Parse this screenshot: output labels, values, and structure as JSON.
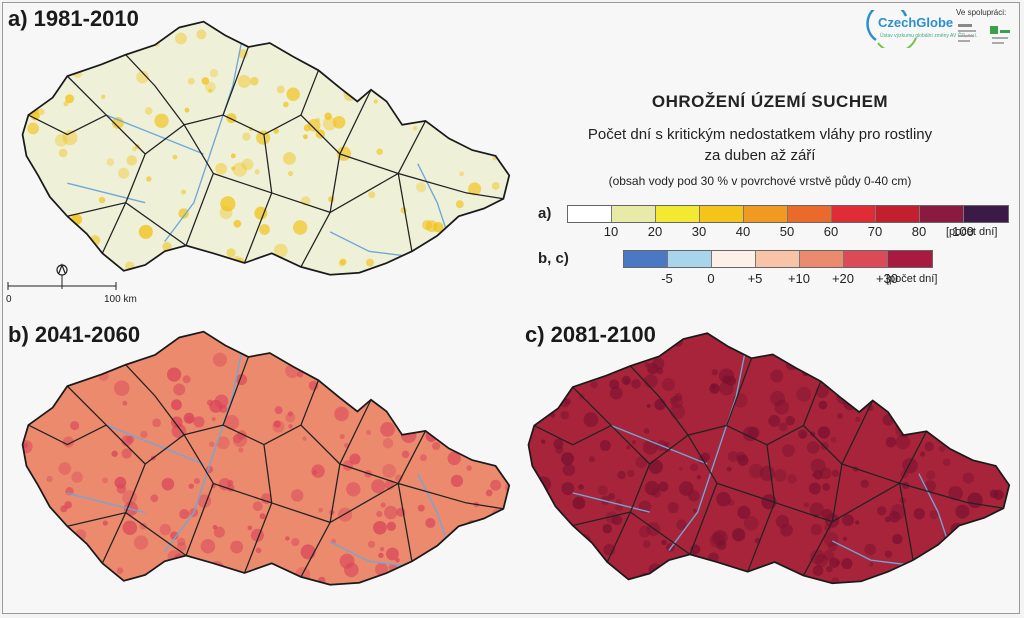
{
  "title": "OHROŽENÍ ÚZEMÍ SUCHEM",
  "subtitle_line1": "Počet dní s kritickým nedostatkem vláhy pro rostliny",
  "subtitle_line2": "za duben až září",
  "note": "(obsah vody pod 30 % v povrchové vrstvě půdy 0-40 cm)",
  "panels": {
    "a": {
      "label": "a) 1981-2010",
      "fill": "#eef1d8",
      "accent": "#f2c21a"
    },
    "b": {
      "label": "b) 2041-2060",
      "fill": "#ec8a6e",
      "accent": "#d9465a"
    },
    "c": {
      "label": "c) 2081-2100",
      "fill": "#a8243a",
      "accent": "#7a1230"
    }
  },
  "legend_a": {
    "label": "a)",
    "colors": [
      "#ffffff",
      "#e8eaa8",
      "#f3e832",
      "#f4c41a",
      "#f09a22",
      "#ea6a2c",
      "#e02c34",
      "#c2202e",
      "#8a1a40",
      "#3c1a48"
    ],
    "ticks": [
      "10",
      "20",
      "30",
      "40",
      "50",
      "60",
      "70",
      "80",
      "100"
    ],
    "unit": "[počet dní]"
  },
  "legend_bc": {
    "label": "b, c)",
    "colors": [
      "#4a78c4",
      "#a8d4ec",
      "#fdf0e6",
      "#f7c4a8",
      "#ec8a6e",
      "#dc4a58",
      "#a81a40"
    ],
    "ticks": [
      "-5",
      "0",
      "+5",
      "+10",
      "+20",
      "+30"
    ],
    "unit": "[počet dní]"
  },
  "logos": {
    "czechglobe": "CzechGlobe",
    "czechglobe_sub": "Ústav výzkumu globální změny AV ČR, v.v.i.",
    "collab": "Ve spolupráci:"
  },
  "scale": {
    "zero": "0",
    "end": "100 km"
  },
  "icons": {
    "north": "north-arrow-icon"
  }
}
